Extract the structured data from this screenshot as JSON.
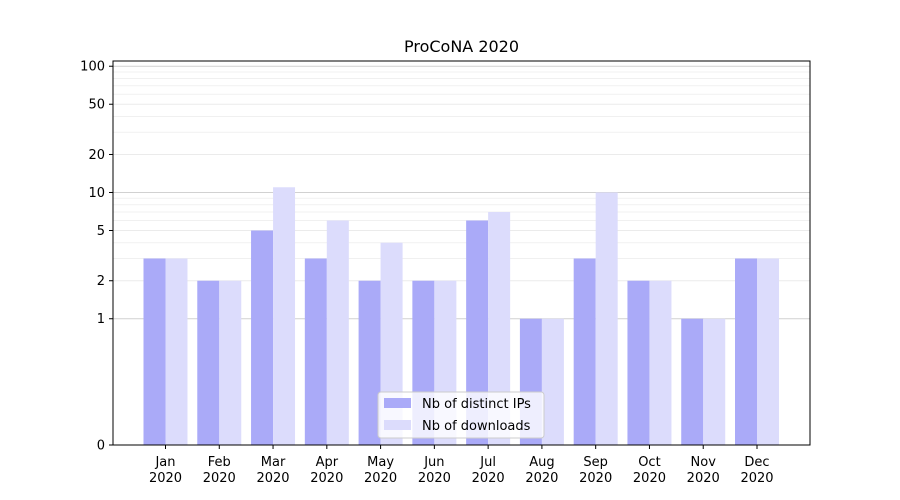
{
  "chart_data": {
    "type": "bar",
    "title": "ProCoNA 2020",
    "xlabel": "",
    "ylabel": "",
    "yscale": "symlog",
    "ylim": [
      0,
      110
    ],
    "yticks": [
      0,
      1,
      2,
      5,
      10,
      20,
      50,
      100
    ],
    "grid": true,
    "legend_position": "bottom-center",
    "categories": [
      "Jan\n2020",
      "Feb\n2020",
      "Mar\n2020",
      "Apr\n2020",
      "May\n2020",
      "Jun\n2020",
      "Jul\n2020",
      "Aug\n2020",
      "Sep\n2020",
      "Oct\n2020",
      "Nov\n2020",
      "Dec\n2020"
    ],
    "series": [
      {
        "name": "Nb of distinct IPs",
        "color": "#aaaaf8",
        "values": [
          3,
          2,
          5,
          3,
          2,
          2,
          6,
          1,
          3,
          2,
          1,
          3
        ]
      },
      {
        "name": "Nb of downloads",
        "color": "#dcdcfc",
        "values": [
          3,
          2,
          11,
          6,
          4,
          2,
          7,
          1,
          10,
          2,
          1,
          3
        ]
      }
    ]
  }
}
